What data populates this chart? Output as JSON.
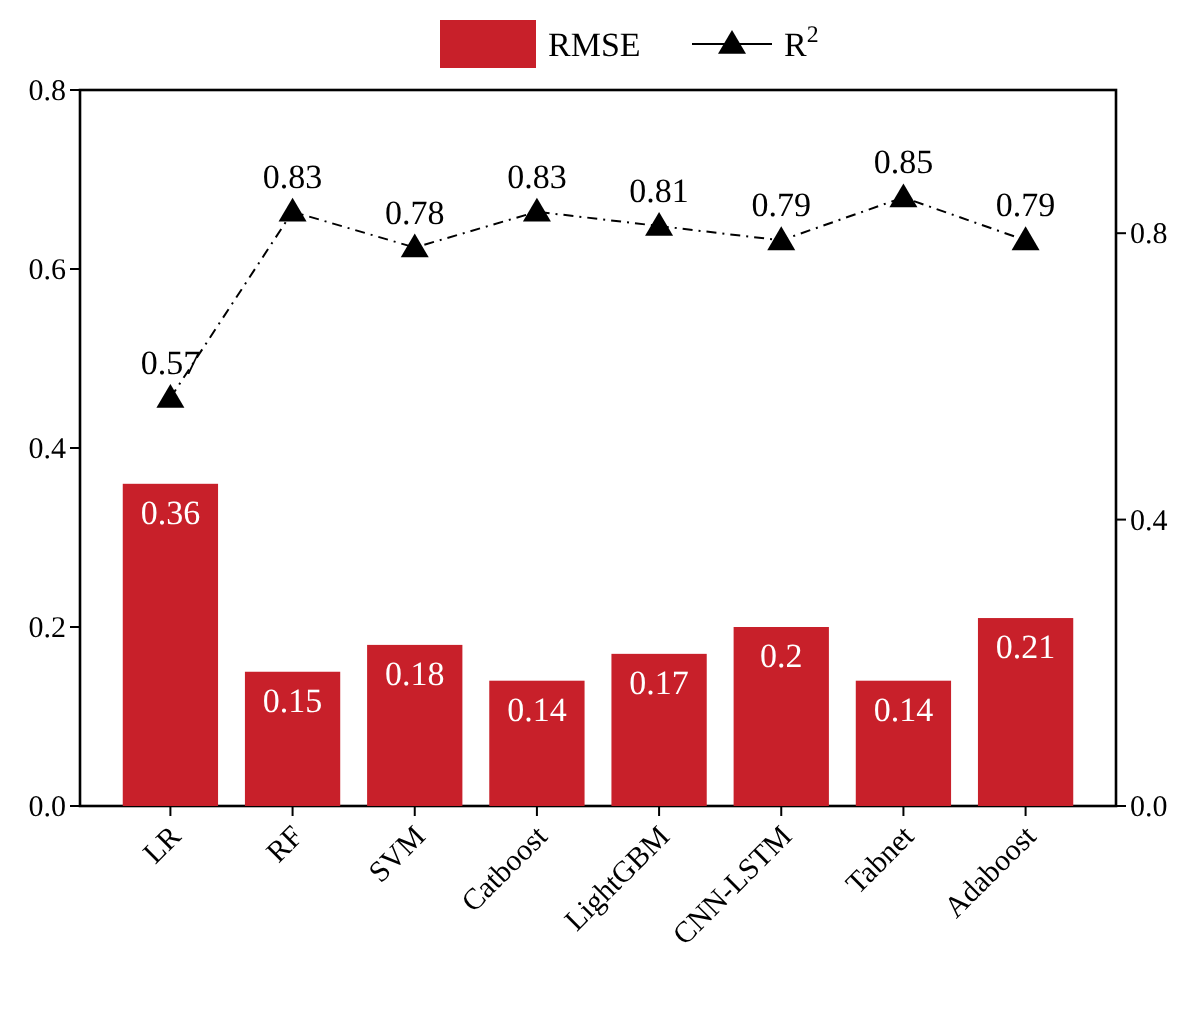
{
  "chart_data": {
    "type": "bar",
    "categories": [
      "LR",
      "RF",
      "SVM",
      "Catboost",
      "LightGBM",
      "CNN-LSTM",
      "Tabnet",
      "Adaboost"
    ],
    "series": [
      {
        "name": "RMSE",
        "color": "#c8202a",
        "values": [
          0.36,
          0.15,
          0.18,
          0.14,
          0.17,
          0.2,
          0.14,
          0.21
        ]
      },
      {
        "name": "R$^{2}$",
        "type": "line",
        "axis": "y2",
        "color": "#000000",
        "marker": "triangle",
        "line_style": "dashed",
        "values": [
          0.57,
          0.83,
          0.78,
          0.83,
          0.81,
          0.79,
          0.85,
          0.79
        ]
      }
    ],
    "ylim": [
      0,
      0.8
    ],
    "yticks": [
      {
        "value": 0,
        "label": "0.0"
      },
      0.2,
      0.4,
      0.6,
      0.8
    ],
    "y2lim": [
      0,
      1
    ],
    "y2ticks": [
      {
        "value": 0,
        "label": "0.0"
      },
      0.4,
      0.8
    ],
    "data_labels": true,
    "legend": "top"
  }
}
